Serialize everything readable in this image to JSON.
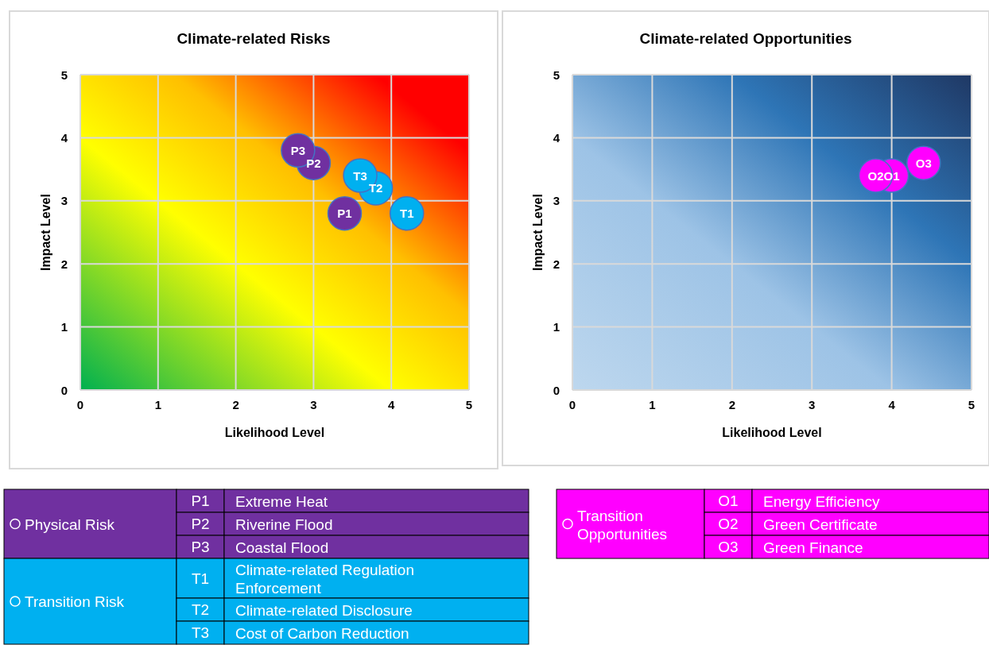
{
  "chart_data": [
    {
      "type": "scatter",
      "title": "Climate-related Risks",
      "xlabel": "Likelihood Level",
      "ylabel": "Impact Level",
      "xlim": [
        0,
        5
      ],
      "ylim": [
        0,
        5
      ],
      "xticks": [
        0,
        1,
        2,
        3,
        4,
        5
      ],
      "yticks": [
        0,
        1,
        2,
        3,
        4,
        5
      ],
      "grid": true,
      "marker": "circle",
      "legend": "bottom",
      "series": [
        {
          "name": "Physical Risk",
          "color": "#7030a0",
          "x": [
            3.4,
            3.0,
            2.8
          ],
          "values": [
            2.8,
            3.6,
            3.8
          ],
          "value_labels": [
            "P1",
            "P2",
            "P3"
          ]
        },
        {
          "name": "Transition Risk",
          "color": "#00b0f0",
          "x": [
            4.2,
            3.8,
            3.6
          ],
          "values": [
            2.8,
            3.2,
            3.4
          ],
          "value_labels": [
            "T1",
            "T2",
            "T3"
          ]
        }
      ],
      "annotations": [
        "Extreme Heat",
        "Riverine Flood",
        "Coastal Flood",
        "Climate-related Regulation Enforcement",
        "Climate-related Disclosure",
        "Cost of Carbon Reduction"
      ]
    },
    {
      "type": "scatter",
      "title": "Climate-related Opportunities",
      "xlabel": "Likelihood Level",
      "ylabel": "Impact Level",
      "xlim": [
        0,
        5
      ],
      "ylim": [
        0,
        5
      ],
      "xticks": [
        0,
        1,
        2,
        3,
        4,
        5
      ],
      "yticks": [
        0,
        1,
        2,
        3,
        4,
        5
      ],
      "grid": true,
      "marker": "circle",
      "legend": "bottom",
      "series": [
        {
          "name": "Transition Opportunities",
          "color": "#ff00ff",
          "x": [
            4.0,
            3.8,
            4.4
          ],
          "values": [
            3.4,
            3.4,
            3.6
          ],
          "value_labels": [
            "O1",
            "O2",
            "O3"
          ]
        }
      ],
      "annotations": [
        "Energy Efficiency",
        "Green Certificate",
        "Green Finance"
      ]
    }
  ]
}
